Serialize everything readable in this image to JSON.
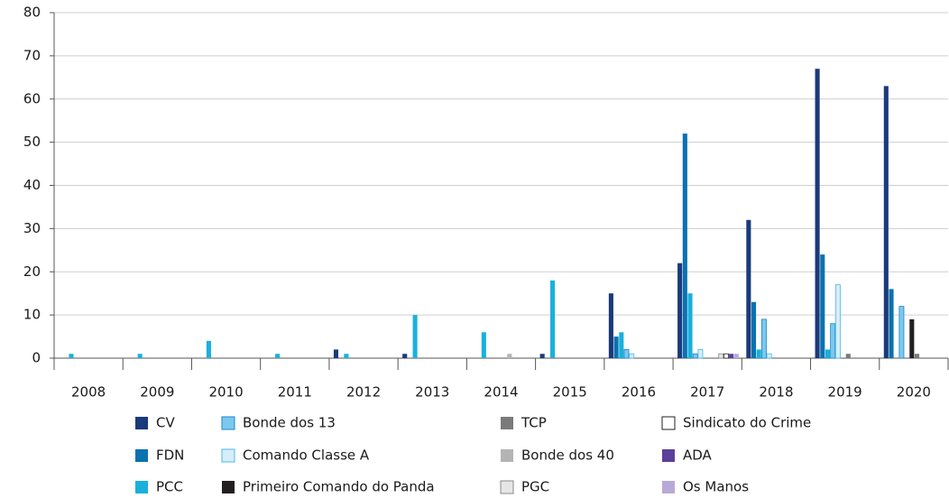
{
  "chart_data": {
    "type": "bar",
    "categories": [
      "2008",
      "2009",
      "2010",
      "2011",
      "2012",
      "2013",
      "2014",
      "2015",
      "2016",
      "2017",
      "2018",
      "2019",
      "2020"
    ],
    "series": [
      {
        "name": "CV",
        "color": "#1b3a7a",
        "values": [
          0,
          0,
          0,
          0,
          2,
          1,
          0,
          1,
          15,
          22,
          32,
          67,
          63
        ]
      },
      {
        "name": "FDN",
        "color": "#0a72b0",
        "values": [
          0,
          0,
          0,
          0,
          0,
          0,
          0,
          0,
          5,
          52,
          13,
          24,
          16
        ]
      },
      {
        "name": "PCC",
        "color": "#1ab0dc",
        "values": [
          1,
          1,
          4,
          1,
          1,
          10,
          6,
          18,
          6,
          15,
          2,
          2,
          0
        ]
      },
      {
        "name": "Bonde dos 13",
        "color": "#7cc8ef",
        "values": [
          0,
          0,
          0,
          0,
          0,
          0,
          0,
          0,
          2,
          1,
          9,
          8,
          12
        ]
      },
      {
        "name": "Comando Classe A",
        "color": "#d6eefa",
        "values": [
          0,
          0,
          0,
          0,
          0,
          0,
          0,
          0,
          1,
          2,
          1,
          17,
          0
        ]
      },
      {
        "name": "Primeiro Comando do Panda",
        "color": "#231f20",
        "values": [
          0,
          0,
          0,
          0,
          0,
          0,
          0,
          0,
          0,
          0,
          0,
          0,
          9
        ]
      },
      {
        "name": "TCP",
        "color": "#7a7a7a",
        "values": [
          0,
          0,
          0,
          0,
          0,
          0,
          0,
          0,
          0,
          0,
          0,
          1,
          1
        ]
      },
      {
        "name": "Bonde dos 40",
        "color": "#b4b4b4",
        "values": [
          0,
          0,
          0,
          0,
          0,
          0,
          1,
          0,
          0,
          0,
          0,
          0,
          0
        ]
      },
      {
        "name": "PGC",
        "color": "#e6e6e6",
        "values": [
          0,
          0,
          0,
          0,
          0,
          0,
          0,
          0,
          0,
          1,
          0,
          0,
          0
        ]
      },
      {
        "name": "Sindicato do Crime",
        "color": "#ffffff",
        "values": [
          0,
          0,
          0,
          0,
          0,
          0,
          0,
          0,
          0,
          1,
          0,
          0,
          0
        ]
      },
      {
        "name": "ADA",
        "color": "#5b3f9a",
        "values": [
          0,
          0,
          0,
          0,
          0,
          0,
          0,
          0,
          0,
          1,
          0,
          0,
          0
        ]
      },
      {
        "name": "Os Manos",
        "color": "#b8a9d6",
        "values": [
          0,
          0,
          0,
          0,
          0,
          0,
          0,
          0,
          0,
          1,
          0,
          0,
          0
        ]
      }
    ],
    "ylim": [
      0,
      80
    ],
    "yticks": [
      0,
      10,
      20,
      30,
      40,
      50,
      60,
      70,
      80
    ],
    "grid": true
  }
}
